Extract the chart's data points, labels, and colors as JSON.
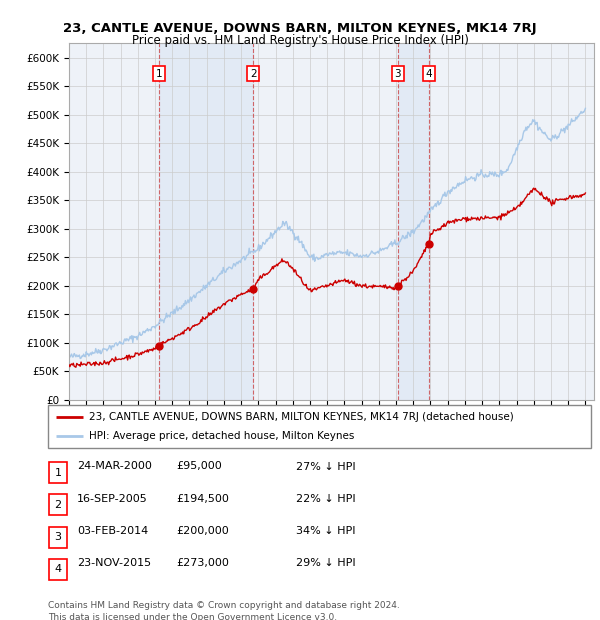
{
  "title": "23, CANTLE AVENUE, DOWNS BARN, MILTON KEYNES, MK14 7RJ",
  "subtitle": "Price paid vs. HM Land Registry's House Price Index (HPI)",
  "yticks": [
    0,
    50000,
    100000,
    150000,
    200000,
    250000,
    300000,
    350000,
    400000,
    450000,
    500000,
    550000,
    600000
  ],
  "ylim": [
    0,
    625000
  ],
  "xlim_start": 1995.0,
  "xlim_end": 2025.5,
  "sale_points": [
    {
      "label": "1",
      "date_x": 2000.23,
      "price": 95000,
      "date_str": "24-MAR-2000",
      "price_str": "£95,000",
      "pct": "27% ↓ HPI"
    },
    {
      "label": "2",
      "date_x": 2005.71,
      "price": 194500,
      "date_str": "16-SEP-2005",
      "price_str": "£194,500",
      "pct": "22% ↓ HPI"
    },
    {
      "label": "3",
      "date_x": 2014.09,
      "price": 200000,
      "date_str": "03-FEB-2014",
      "price_str": "£200,000",
      "pct": "34% ↓ HPI"
    },
    {
      "label": "4",
      "date_x": 2015.9,
      "price": 273000,
      "date_str": "23-NOV-2015",
      "price_str": "£273,000",
      "pct": "29% ↓ HPI"
    }
  ],
  "legend_line1": "23, CANTLE AVENUE, DOWNS BARN, MILTON KEYNES, MK14 7RJ (detached house)",
  "legend_line2": "HPI: Average price, detached house, Milton Keynes",
  "footer1": "Contains HM Land Registry data © Crown copyright and database right 2024.",
  "footer2": "This data is licensed under the Open Government Licence v3.0.",
  "hpi_color": "#a8c8e8",
  "sale_color": "#cc0000",
  "shade_color": "#ddeeff",
  "background_color": "#eef2f8",
  "plot_bg": "#ffffff",
  "grid_color": "#cccccc"
}
